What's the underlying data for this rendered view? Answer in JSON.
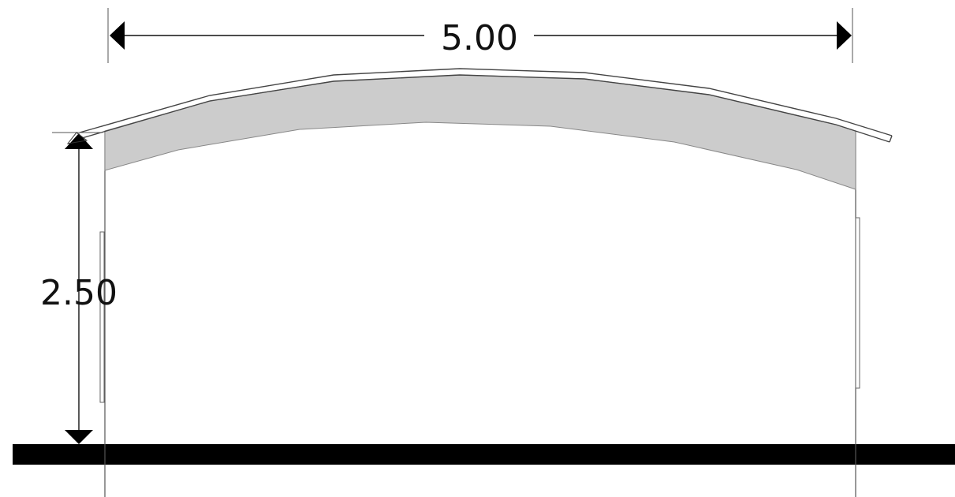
{
  "dimensions": {
    "width_label": "5.00",
    "height_label": "2.50"
  },
  "colors": {
    "line": "#000000",
    "thin_line": "#666666",
    "roof_fill": "#cccccc",
    "ground": "#000000"
  }
}
